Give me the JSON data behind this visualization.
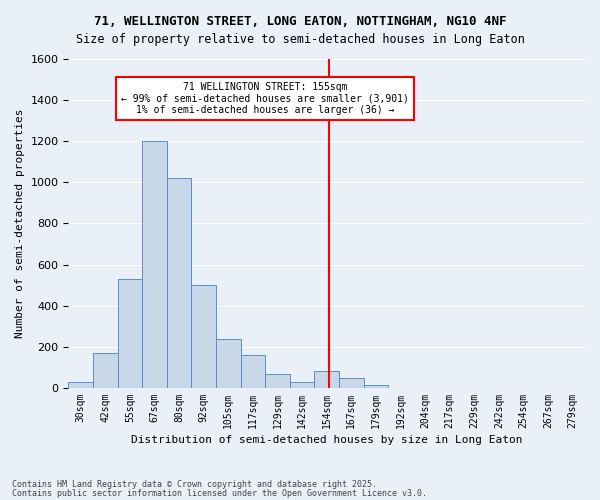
{
  "title1": "71, WELLINGTON STREET, LONG EATON, NOTTINGHAM, NG10 4NF",
  "title2": "Size of property relative to semi-detached houses in Long Eaton",
  "xlabel": "Distribution of semi-detached houses by size in Long Eaton",
  "ylabel": "Number of semi-detached properties",
  "categories": [
    "30sqm",
    "42sqm",
    "55sqm",
    "67sqm",
    "80sqm",
    "92sqm",
    "105sqm",
    "117sqm",
    "129sqm",
    "142sqm",
    "154sqm",
    "167sqm",
    "179sqm",
    "192sqm",
    "204sqm",
    "217sqm",
    "229sqm",
    "242sqm",
    "254sqm",
    "267sqm",
    "279sqm"
  ],
  "values": [
    30,
    170,
    530,
    1200,
    1020,
    500,
    240,
    160,
    70,
    30,
    80,
    50,
    15,
    0,
    0,
    0,
    0,
    0,
    0,
    0,
    0
  ],
  "bar_color": "#c8d8e8",
  "bar_edge_color": "#5b8fc9",
  "vline_color": "red",
  "annotation_title": "71 WELLINGTON STREET: 155sqm",
  "annotation_line1": "← 99% of semi-detached houses are smaller (3,901)",
  "annotation_line2": "1% of semi-detached houses are larger (36) →",
  "ylim": [
    0,
    1600
  ],
  "yticks": [
    0,
    200,
    400,
    600,
    800,
    1000,
    1200,
    1400,
    1600
  ],
  "bg_color": "#eaf0f8",
  "grid_color": "#ffffff",
  "footnote1": "Contains HM Land Registry data © Crown copyright and database right 2025.",
  "footnote2": "Contains public sector information licensed under the Open Government Licence v3.0.",
  "vline_index": 10.077
}
